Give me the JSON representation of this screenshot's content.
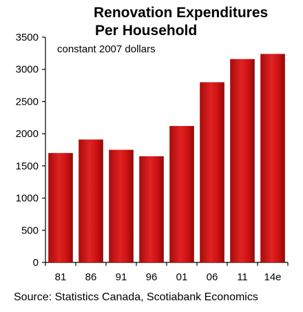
{
  "chart_data": {
    "type": "bar",
    "title_line1": "Renovation Expenditures",
    "title_line2": "Per Household",
    "subtitle": "constant 2007 dollars",
    "source": "Source: Statistics Canada, Scotiabank Economics",
    "categories": [
      "81",
      "86",
      "91",
      "96",
      "01",
      "06",
      "11",
      "14e"
    ],
    "values": [
      1700,
      1910,
      1750,
      1650,
      2120,
      2800,
      3160,
      3240
    ],
    "ylim": [
      0,
      3500
    ],
    "yticks": [
      0,
      500,
      1000,
      1500,
      2000,
      2500,
      3000,
      3500
    ],
    "bar_color": "#cc1111",
    "bar_highlight": "#f03a3a",
    "bar_shade": "#8e0a0a",
    "grid": false
  }
}
